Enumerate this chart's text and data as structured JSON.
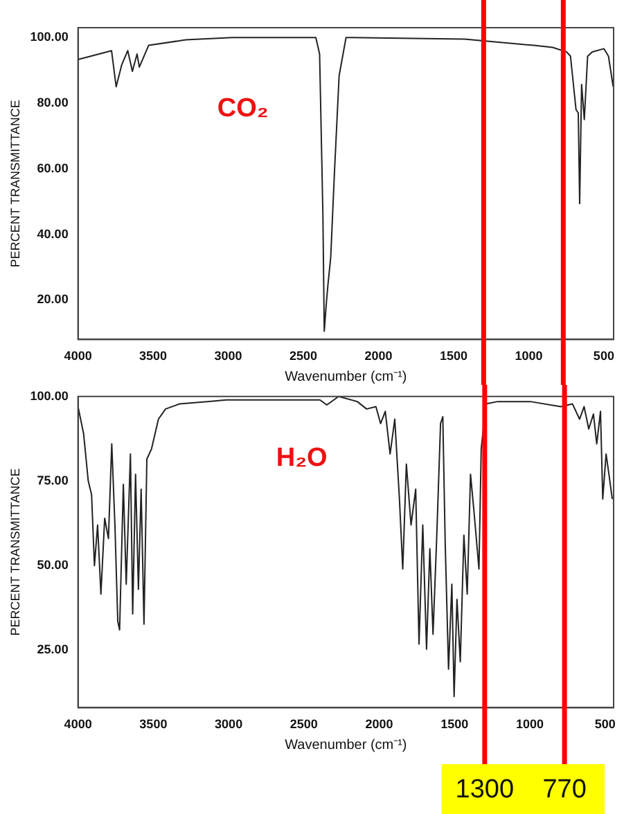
{
  "chart_data": [
    {
      "type": "line",
      "xlabel": "Wavenumber (cm⁻¹)",
      "ylabel": "PERCENT TRANSMITTANCE",
      "annotations": [
        "CO₂"
      ],
      "xlim": [
        4000,
        435
      ],
      "xticks": [
        4000,
        3500,
        3000,
        2500,
        2000,
        1500,
        1000,
        500
      ],
      "ylim": [
        8,
        103
      ],
      "yticks": [
        {
          "value": 20,
          "label": "20.00"
        },
        {
          "value": 40,
          "label": "40.00"
        },
        {
          "value": 60,
          "label": "60.00"
        },
        {
          "value": 80,
          "label": "80.00"
        },
        {
          "value": 100,
          "label": "100.00"
        }
      ],
      "grid": false,
      "legend": false,
      "marker": "none",
      "line_style": "solid",
      "ref_lines": [
        {
          "axis": "x",
          "value": 1300,
          "color": "#ff0000"
        },
        {
          "axis": "x",
          "value": 770,
          "color": "#ff0000"
        }
      ],
      "series": [
        {
          "color": "#222222",
          "x": [
            4000,
            3777,
            3746,
            3709,
            3669,
            3638,
            3607,
            3592,
            3530,
            3283,
            2973,
            2417,
            2392,
            2370,
            2361,
            2346,
            2337,
            2318,
            2293,
            2262,
            2216,
            1427,
            964,
            840,
            747,
            722,
            685,
            670,
            661,
            648,
            630,
            608,
            577,
            500,
            469,
            438
          ],
          "values": [
            93.3,
            96,
            85,
            91.7,
            96,
            89.7,
            95,
            91,
            97.6,
            99.3,
            100,
            100,
            95,
            46,
            10.5,
            19.7,
            24.4,
            33,
            59,
            88.4,
            100,
            99.5,
            97.6,
            97,
            95.6,
            94.3,
            78,
            77,
            49.4,
            85.7,
            75,
            94.3,
            95.6,
            96.6,
            94.3,
            85
          ]
        }
      ]
    },
    {
      "type": "line",
      "xlabel": "Wavenumber (cm⁻¹)",
      "ylabel": "PERCENT TRANSMITTANCE",
      "annotations": [
        "H₂O"
      ],
      "xlim": [
        4000,
        444
      ],
      "xticks": [
        4000,
        3500,
        3000,
        2500,
        2000,
        1500,
        1000,
        500
      ],
      "ylim": [
        8,
        100
      ],
      "yticks": [
        {
          "value": 25,
          "label": "25.00"
        },
        {
          "value": 50,
          "label": "50.00"
        },
        {
          "value": 75,
          "label": "75.00"
        },
        {
          "value": 100,
          "label": "100.00"
        }
      ],
      "grid": false,
      "legend": false,
      "marker": "none",
      "line_style": "solid",
      "ref_lines": [
        {
          "axis": "x",
          "value": 1300,
          "label": "1300",
          "color": "#ff0000"
        },
        {
          "axis": "x",
          "value": 770,
          "label": "770",
          "color": "#ff0000"
        }
      ],
      "series": [
        {
          "color": "#222222",
          "x": [
            4000,
            3963,
            3932,
            3910,
            3891,
            3870,
            3848,
            3823,
            3798,
            3776,
            3755,
            3736,
            3724,
            3699,
            3680,
            3652,
            3637,
            3618,
            3599,
            3581,
            3562,
            3543,
            3512,
            3466,
            3419,
            3326,
            3140,
            3015,
            2394,
            2348,
            2270,
            2146,
            2084,
            2022,
            1991,
            1960,
            1928,
            1897,
            1866,
            1844,
            1820,
            1789,
            1758,
            1736,
            1711,
            1686,
            1664,
            1643,
            1618,
            1593,
            1578,
            1562,
            1540,
            1518,
            1503,
            1484,
            1462,
            1438,
            1416,
            1394,
            1369,
            1338,
            1323,
            1292,
            1214,
            997,
            795,
            717,
            670,
            640,
            609,
            578,
            556,
            531,
            516,
            494,
            475,
            453
          ],
          "values": [
            97,
            89,
            75,
            71,
            50,
            62,
            41.6,
            64,
            58,
            86,
            62,
            33.5,
            31,
            74,
            44.5,
            83,
            35.7,
            77,
            43,
            72.6,
            32.7,
            81.5,
            84.5,
            93.3,
            96.3,
            97.8,
            98.5,
            99,
            99,
            97.5,
            100,
            98.5,
            96.3,
            97,
            92,
            95.6,
            83,
            93.3,
            69.7,
            49,
            80,
            62,
            72.6,
            26.8,
            62,
            25.3,
            55,
            29.7,
            59,
            92,
            94,
            56.4,
            19.4,
            44.5,
            11.3,
            40,
            21.6,
            59,
            41.6,
            77,
            65,
            49,
            84.5,
            97.8,
            98.5,
            98.5,
            97,
            97.8,
            93.3,
            97,
            90.4,
            94.8,
            86,
            95.6,
            69.7,
            83,
            77,
            69.7
          ]
        }
      ]
    }
  ]
}
